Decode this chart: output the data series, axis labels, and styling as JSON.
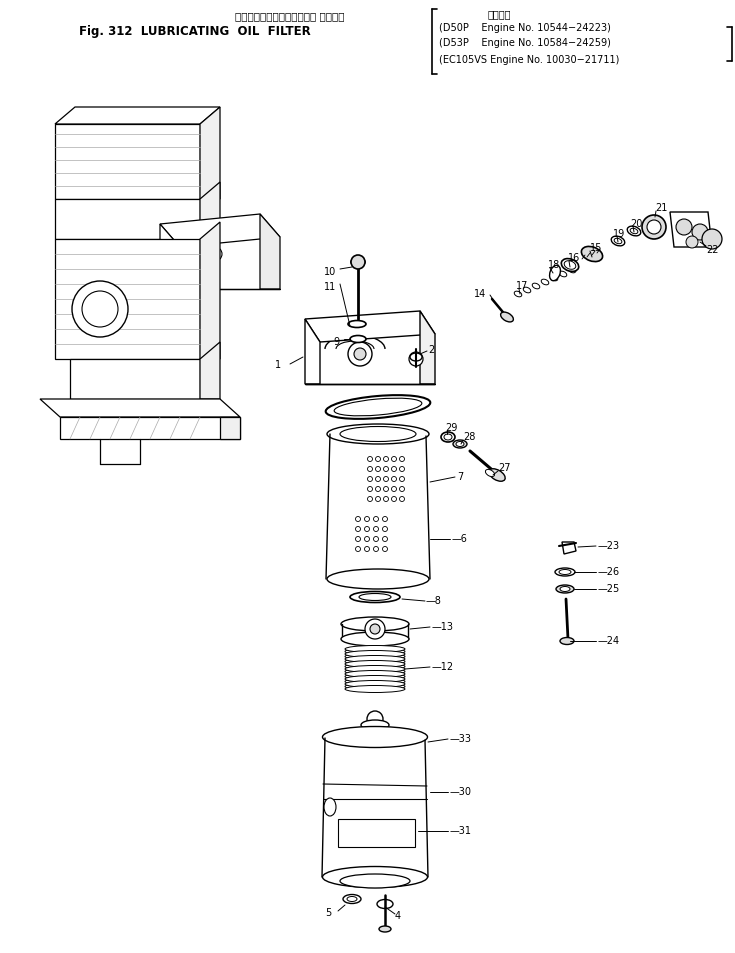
{
  "title_japanese": "ルーブリケーティングオイル フィルタ",
  "title_fig": "Fig. 312  LUBRICATING  OIL  FILTER",
  "spec_label": "適用号機",
  "spec_lines": [
    "(D50P    Engine No. 10544−24223)",
    "(D53P    Engine No. 10584−24259)",
    "(EC105VS Engine No. 10030−21711)"
  ],
  "bg_color": "#ffffff",
  "line_color": "#000000",
  "text_color": "#000000",
  "fig_width": 7.35,
  "fig_height": 9.54,
  "dpi": 100
}
